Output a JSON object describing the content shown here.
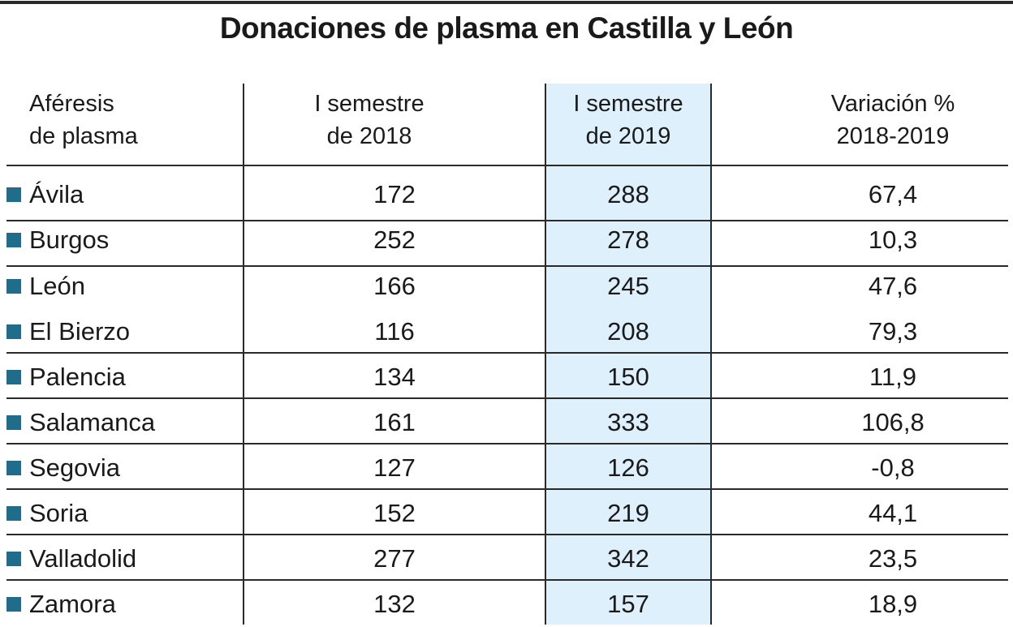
{
  "title": "Donaciones de plasma en Castilla y León",
  "colors": {
    "bullet": "#1f6d8b",
    "highlight_column": "#def0fb"
  },
  "chart_data": {
    "type": "table",
    "title": "Donaciones de plasma en Castilla y León",
    "columns": [
      {
        "line1": "Aféresis",
        "line2": "de plasma"
      },
      {
        "line1": "I semestre",
        "line2": "de 2018"
      },
      {
        "line1": "I semestre",
        "line2": "de 2019"
      },
      {
        "line1": "Variación %",
        "line2": "2018-2019"
      }
    ],
    "rows": [
      {
        "name": "Ávila",
        "s2018": "172",
        "s2019": "288",
        "var": "67,4"
      },
      {
        "name": "Burgos",
        "s2018": "252",
        "s2019": "278",
        "var": "10,3"
      },
      {
        "name": "León",
        "s2018": "166",
        "s2019": "245",
        "var": "47,6"
      },
      {
        "name": "El Bierzo",
        "s2018": "116",
        "s2019": "208",
        "var": "79,3"
      },
      {
        "name": "Palencia",
        "s2018": "134",
        "s2019": "150",
        "var": "11,9"
      },
      {
        "name": "Salamanca",
        "s2018": "161",
        "s2019": "333",
        "var": "106,8"
      },
      {
        "name": "Segovia",
        "s2018": "127",
        "s2019": "126",
        "var": "-0,8"
      },
      {
        "name": "Soria",
        "s2018": "152",
        "s2019": "219",
        "var": "44,1"
      },
      {
        "name": "Valladolid",
        "s2018": "277",
        "s2019": "342",
        "var": "23,5"
      },
      {
        "name": "Zamora",
        "s2018": "132",
        "s2019": "157",
        "var": "18,9"
      }
    ]
  }
}
